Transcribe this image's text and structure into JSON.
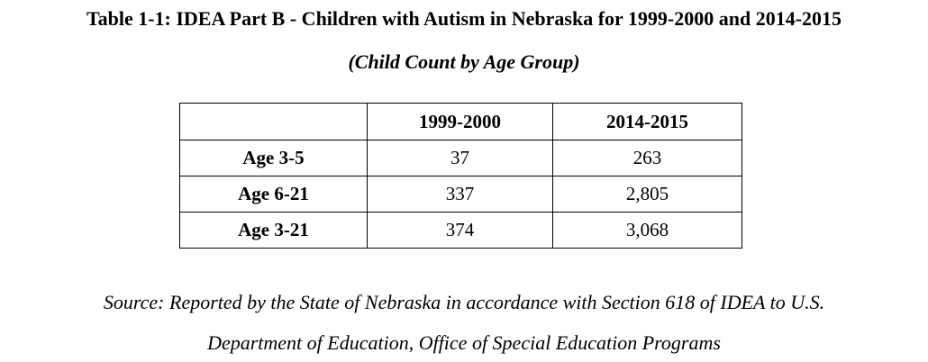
{
  "document": {
    "title": "Table 1-1: IDEA Part B - Children with Autism in Nebraska for 1999-2000 and 2014-2015",
    "subtitle": "(Child Count by Age Group)",
    "table": {
      "columns": [
        "",
        "1999-2000",
        "2014-2015"
      ],
      "rows": [
        {
          "label": "Age 3-5",
          "values": [
            "37",
            "263"
          ]
        },
        {
          "label": "Age 6-21",
          "values": [
            "337",
            "2,805"
          ]
        },
        {
          "label": "Age 3-21",
          "values": [
            "374",
            "3,068"
          ]
        }
      ]
    },
    "source_line1": "Source: Reported by the State of Nebraska in accordance with Section 618 of IDEA to U.S.",
    "source_line2": "Department of Education, Office of Special Education Programs"
  }
}
